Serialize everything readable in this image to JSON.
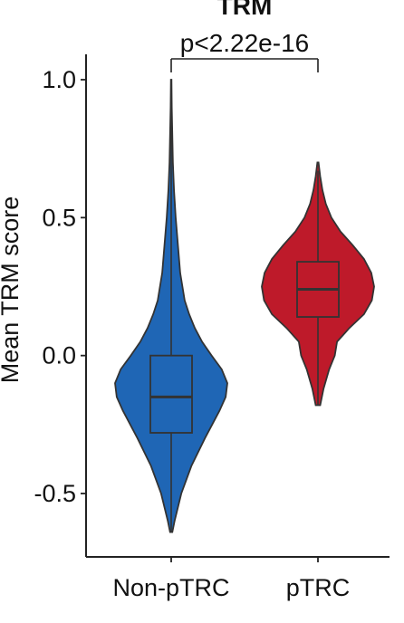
{
  "chart_data": {
    "type": "violin",
    "title": "TRM",
    "ylabel": "Mean TRM score",
    "xlabel": "",
    "ylim": [
      -0.65,
      1.02
    ],
    "yticks": [
      {
        "value": -0.5,
        "label": "-0.5"
      },
      {
        "value": 0.0,
        "label": "0.0"
      },
      {
        "value": 0.5,
        "label": "0.5"
      },
      {
        "value": 1.0,
        "label": "1.0"
      }
    ],
    "categories": [
      "Non-pTRC",
      "pTRC"
    ],
    "annotation": {
      "text": "p<2.22e-16",
      "between": [
        "Non-pTRC",
        "pTRC"
      ]
    },
    "series": [
      {
        "category": "Non-pTRC",
        "color": "#1f66b5",
        "min": -0.64,
        "max": 1.0,
        "box": {
          "q1": -0.28,
          "median": -0.15,
          "q3": 0.0
        },
        "whisker": {
          "low": -0.64,
          "high": 0.97
        },
        "density": [
          [
            -0.64,
            0.02
          ],
          [
            -0.6,
            0.06
          ],
          [
            -0.5,
            0.18
          ],
          [
            -0.4,
            0.36
          ],
          [
            -0.3,
            0.6
          ],
          [
            -0.2,
            0.86
          ],
          [
            -0.15,
            0.97
          ],
          [
            -0.1,
            1.0
          ],
          [
            -0.05,
            0.9
          ],
          [
            0.0,
            0.72
          ],
          [
            0.05,
            0.55
          ],
          [
            0.1,
            0.42
          ],
          [
            0.15,
            0.32
          ],
          [
            0.2,
            0.24
          ],
          [
            0.3,
            0.16
          ],
          [
            0.4,
            0.12
          ],
          [
            0.5,
            0.08
          ],
          [
            0.6,
            0.05
          ],
          [
            0.7,
            0.03
          ],
          [
            0.8,
            0.02
          ],
          [
            0.9,
            0.01
          ],
          [
            1.0,
            0.005
          ]
        ]
      },
      {
        "category": "pTRC",
        "color": "#be1a2a",
        "min": -0.18,
        "max": 0.7,
        "box": {
          "q1": 0.14,
          "median": 0.24,
          "q3": 0.34
        },
        "whisker": {
          "low": -0.18,
          "high": 0.67
        },
        "density": [
          [
            -0.18,
            0.04
          ],
          [
            -0.12,
            0.1
          ],
          [
            -0.05,
            0.2
          ],
          [
            0.0,
            0.3
          ],
          [
            0.05,
            0.34
          ],
          [
            0.1,
            0.56
          ],
          [
            0.15,
            0.82
          ],
          [
            0.2,
            0.96
          ],
          [
            0.25,
            1.0
          ],
          [
            0.3,
            0.95
          ],
          [
            0.35,
            0.82
          ],
          [
            0.4,
            0.62
          ],
          [
            0.45,
            0.4
          ],
          [
            0.5,
            0.24
          ],
          [
            0.55,
            0.14
          ],
          [
            0.6,
            0.08
          ],
          [
            0.65,
            0.04
          ],
          [
            0.7,
            0.01
          ]
        ]
      }
    ]
  }
}
